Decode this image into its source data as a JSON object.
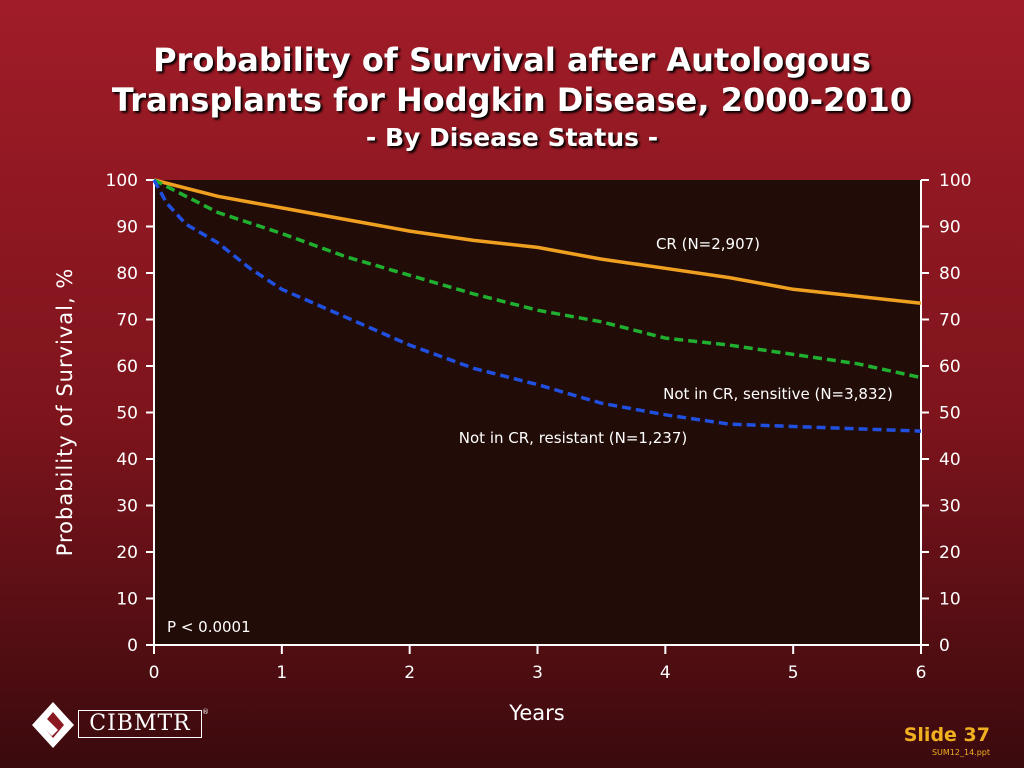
{
  "slide": {
    "title_line1": "Probability of Survival after Autologous",
    "title_line2": "Transplants for Hodgkin Disease, 2000-2010",
    "subtitle": "- By Disease Status -",
    "slide_number": "Slide 37",
    "file_name": "SUM12_14.ppt",
    "logo_text": "CIBMTR",
    "logo_mark": "®"
  },
  "chart_data": {
    "type": "line",
    "ylabel": "Probability of Survival, %",
    "xlabel": "Years",
    "xlim": [
      0,
      6
    ],
    "ylim": [
      0,
      100
    ],
    "x_ticks": [
      "0",
      "1",
      "2",
      "3",
      "4",
      "5",
      "6"
    ],
    "y_ticks": [
      "0",
      "10",
      "20",
      "30",
      "40",
      "50",
      "60",
      "70",
      "80",
      "90",
      "100"
    ],
    "grid": false,
    "annotation": "P < 0.0001",
    "series": [
      {
        "name": "CR (N=2,907)",
        "color": "#f0a020",
        "style": "solid",
        "x": [
          0,
          0.5,
          1,
          1.5,
          2,
          2.5,
          3,
          3.5,
          4,
          4.5,
          5,
          5.5,
          6
        ],
        "values": [
          100,
          96.5,
          94,
          91.5,
          89,
          87,
          85.5,
          83,
          81,
          79,
          76.5,
          75,
          73.5
        ]
      },
      {
        "name": "Not in CR, sensitive (N=3,832)",
        "color": "#20b030",
        "style": "dashed",
        "x": [
          0,
          0.5,
          1,
          1.5,
          2,
          2.5,
          3,
          3.5,
          4,
          4.5,
          5,
          5.5,
          6
        ],
        "values": [
          100,
          93,
          88.5,
          83.5,
          79.5,
          75.5,
          72,
          69.5,
          66,
          64.5,
          62.5,
          60.5,
          57.5
        ]
      },
      {
        "name": "Not in CR, resistant (N=1,237)",
        "color": "#2050e0",
        "style": "dashed",
        "x": [
          0,
          0.1,
          0.25,
          0.5,
          0.75,
          1,
          1.5,
          2,
          2.5,
          3,
          3.5,
          4,
          4.5,
          5,
          5.5,
          6
        ],
        "values": [
          100,
          95,
          90.5,
          86.5,
          81,
          76.5,
          70.5,
          64.5,
          59.5,
          56,
          52,
          49.5,
          47.5,
          47,
          46.5,
          46
        ]
      }
    ]
  }
}
